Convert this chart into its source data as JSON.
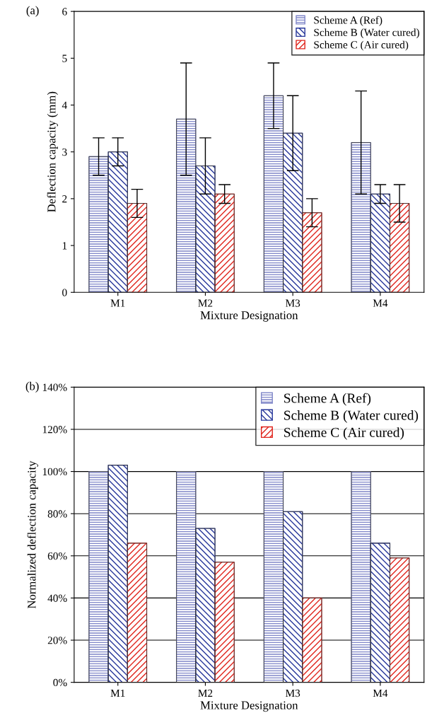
{
  "chart_data": [
    {
      "type": "bar",
      "annotations": [
        "(a)"
      ],
      "ylabel": "Deflection capacity (mm)",
      "xlabel": "Mixture Designation",
      "categories": [
        "M1",
        "M2",
        "M3",
        "M4"
      ],
      "ylim": [
        0,
        6
      ],
      "yticks": [
        0,
        1,
        2,
        3,
        4,
        5,
        6
      ],
      "legend": "top right",
      "grid": false,
      "series": [
        {
          "name": "Scheme A (Ref)",
          "color": "#7f86c8",
          "values": [
            2.9,
            3.7,
            4.2,
            3.2
          ],
          "errors": [
            [
              2.5,
              3.3
            ],
            [
              2.5,
              4.9
            ],
            [
              3.5,
              4.9
            ],
            [
              2.1,
              4.3
            ]
          ]
        },
        {
          "name": "Scheme B (Water cured)",
          "color": "#26369a",
          "values": [
            3.0,
            2.7,
            3.4,
            2.1
          ],
          "errors": [
            [
              2.7,
              3.3
            ],
            [
              2.1,
              3.3
            ],
            [
              2.6,
              4.2
            ],
            [
              1.9,
              2.3
            ]
          ]
        },
        {
          "name": "Scheme C (Air cured)",
          "color": "#e0241c",
          "values": [
            1.9,
            2.1,
            1.7,
            1.9
          ],
          "errors": [
            [
              1.6,
              2.2
            ],
            [
              1.9,
              2.3
            ],
            [
              1.4,
              2.0
            ],
            [
              1.5,
              2.3
            ]
          ]
        }
      ]
    },
    {
      "type": "bar",
      "annotations": [
        "(b)"
      ],
      "ylabel": "Normalized deflection capacity",
      "xlabel": "Mixture Designation",
      "categories": [
        "M1",
        "M2",
        "M3",
        "M4"
      ],
      "ylim": [
        0,
        140
      ],
      "yticks": [
        {
          "value": 0,
          "label": "0%"
        },
        {
          "value": 20,
          "label": "20%"
        },
        {
          "value": 40,
          "label": "40%"
        },
        {
          "value": 60,
          "label": "60%"
        },
        {
          "value": 80,
          "label": "80%"
        },
        {
          "value": 100,
          "label": "100%"
        },
        {
          "value": 120,
          "label": "120%"
        },
        {
          "value": 140,
          "label": "140%"
        }
      ],
      "legend": "top right",
      "grid": "y",
      "series": [
        {
          "name": "Scheme A (Ref)",
          "color": "#7f86c8",
          "values": [
            100,
            100,
            100,
            100
          ]
        },
        {
          "name": "Scheme B (Water cured)",
          "color": "#26369a",
          "values": [
            103,
            73,
            81,
            66
          ]
        },
        {
          "name": "Scheme C (Air cured)",
          "color": "#e0241c",
          "values": [
            66,
            57,
            40,
            59
          ]
        }
      ]
    }
  ]
}
